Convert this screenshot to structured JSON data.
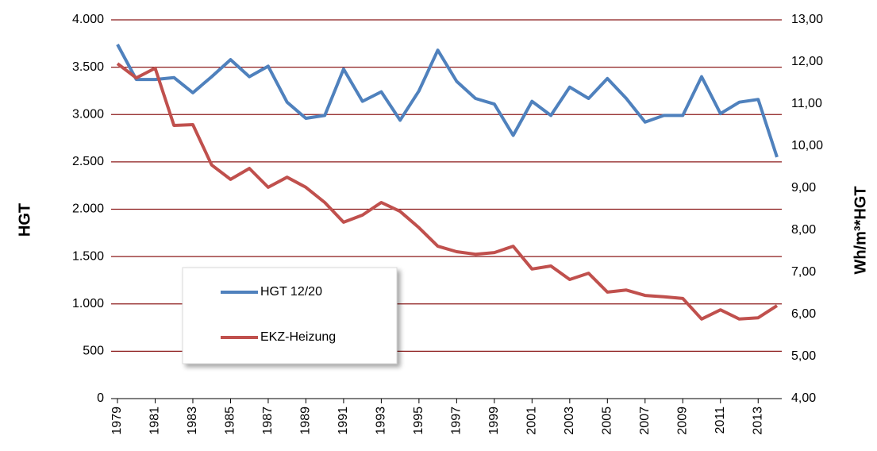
{
  "chart_data": {
    "type": "line",
    "x": [
      1979,
      1980,
      1981,
      1982,
      1983,
      1984,
      1985,
      1986,
      1987,
      1988,
      1989,
      1990,
      1991,
      1992,
      1993,
      1994,
      1995,
      1996,
      1997,
      1998,
      1999,
      2000,
      2001,
      2002,
      2003,
      2004,
      2005,
      2006,
      2007,
      2008,
      2009,
      2010,
      2011,
      2012,
      2013,
      2014
    ],
    "xlim": [
      1979,
      2014
    ],
    "xticks": [
      1979,
      1981,
      1983,
      1985,
      1987,
      1989,
      1991,
      1993,
      1995,
      1997,
      1999,
      2001,
      2003,
      2005,
      2007,
      2009,
      2011,
      2013
    ],
    "ylabel": "HGT",
    "y2label": "Wh/m³*HGT",
    "ylim": [
      0,
      4000
    ],
    "yticks": [
      0,
      500,
      {
        "value": 1000,
        "label": "1.000"
      },
      {
        "value": 1500,
        "label": "1.500"
      },
      {
        "value": 2000,
        "label": "2.000"
      },
      {
        "value": 2500,
        "label": "2.500"
      },
      {
        "value": 3000,
        "label": "3.000"
      },
      {
        "value": 3500,
        "label": "3.500"
      },
      {
        "value": 4000,
        "label": "4.000"
      }
    ],
    "y2lim": [
      4,
      13
    ],
    "y2ticks": [
      {
        "value": 4,
        "label": "4,00"
      },
      {
        "value": 5,
        "label": "5,00"
      },
      {
        "value": 6,
        "label": "6,00"
      },
      {
        "value": 7,
        "label": "7,00"
      },
      {
        "value": 8,
        "label": "8,00"
      },
      {
        "value": 9,
        "label": "9,00"
      },
      {
        "value": 10,
        "label": "10,00"
      },
      {
        "value": 11,
        "label": "11,00"
      },
      {
        "value": 12,
        "label": "12,00"
      },
      {
        "value": 13,
        "label": "13,00"
      }
    ],
    "grid": true,
    "grid_color": "#8b1a1a",
    "legend_position": "lower left",
    "series": [
      {
        "name": "HGT 12/20",
        "color": "#4f81bd",
        "values": [
          3740,
          3370,
          3370,
          3390,
          3230,
          3400,
          3580,
          3400,
          3510,
          3130,
          2960,
          2990,
          3480,
          3140,
          3240,
          2940,
          3250,
          3680,
          3350,
          3170,
          3110,
          2780,
          3140,
          2990,
          3290,
          3170,
          3380,
          3170,
          2920,
          2990,
          2990,
          3400,
          3010,
          3130,
          3160,
          2550
        ]
      },
      {
        "name": "EKZ-Heizung",
        "color": "#c0504d",
        "axis": "y2",
        "values": [
          11.96,
          11.62,
          11.85,
          10.49,
          10.51,
          9.55,
          9.21,
          9.47,
          9.02,
          9.26,
          9.02,
          8.66,
          8.19,
          8.36,
          8.66,
          8.45,
          8.06,
          7.62,
          7.49,
          7.43,
          7.47,
          7.62,
          7.08,
          7.15,
          6.83,
          6.98,
          6.53,
          6.58,
          6.45,
          6.42,
          6.38,
          5.89,
          6.11,
          5.89,
          5.92,
          6.21
        ]
      }
    ]
  }
}
